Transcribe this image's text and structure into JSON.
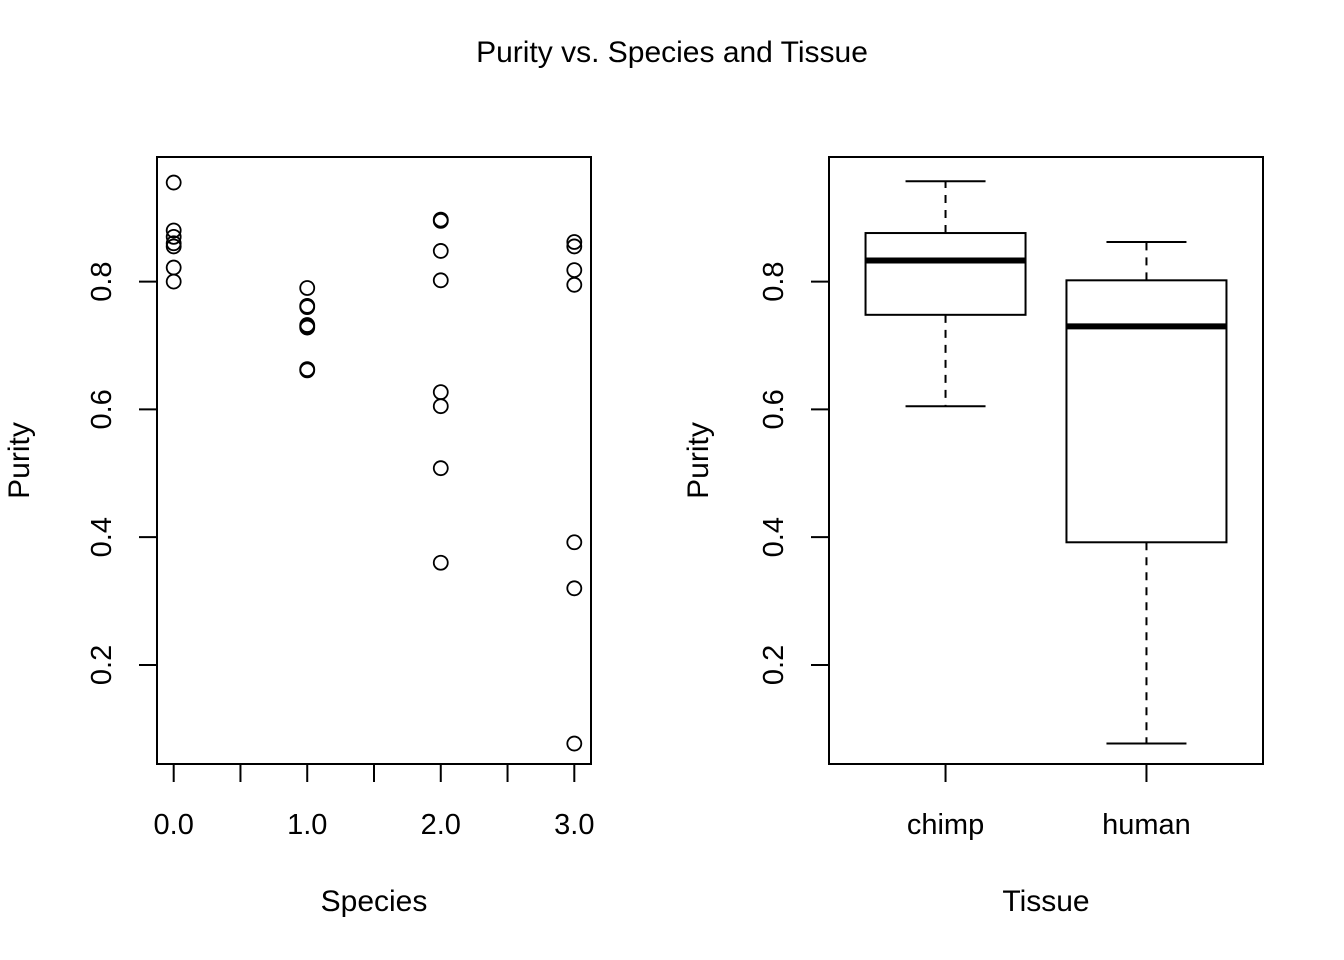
{
  "figure": {
    "title": "Purity vs. Species and Tissue"
  },
  "chart_data": [
    {
      "type": "scatter",
      "xlabel": "Species",
      "ylabel": "Purity",
      "xlim": [
        -0.125,
        3.125
      ],
      "ylim": [
        0.045,
        0.995
      ],
      "x_ticks": [
        0,
        0.5,
        1,
        1.5,
        2,
        2.5,
        3
      ],
      "x_tick_labels": [
        {
          "value": 0,
          "label": "0.0"
        },
        {
          "value": 1,
          "label": "1.0"
        },
        {
          "value": 2,
          "label": "2.0"
        },
        {
          "value": 3,
          "label": "3.0"
        }
      ],
      "y_ticks": [
        {
          "value": 0.2,
          "label": "0.2"
        },
        {
          "value": 0.4,
          "label": "0.4"
        },
        {
          "value": 0.6,
          "label": "0.6"
        },
        {
          "value": 0.8,
          "label": "0.8"
        }
      ],
      "points": [
        {
          "x": 0,
          "y": 0.955
        },
        {
          "x": 0,
          "y": 0.88
        },
        {
          "x": 0,
          "y": 0.87
        },
        {
          "x": 0,
          "y": 0.86
        },
        {
          "x": 0,
          "y": 0.855
        },
        {
          "x": 0,
          "y": 0.822
        },
        {
          "x": 0,
          "y": 0.8
        },
        {
          "x": 1,
          "y": 0.79
        },
        {
          "x": 1,
          "y": 0.762
        },
        {
          "x": 1,
          "y": 0.76
        },
        {
          "x": 1,
          "y": 0.732
        },
        {
          "x": 1,
          "y": 0.73
        },
        {
          "x": 1,
          "y": 0.728
        },
        {
          "x": 1,
          "y": 0.663
        },
        {
          "x": 1,
          "y": 0.661
        },
        {
          "x": 2,
          "y": 0.897
        },
        {
          "x": 2,
          "y": 0.895
        },
        {
          "x": 2,
          "y": 0.848
        },
        {
          "x": 2,
          "y": 0.802
        },
        {
          "x": 2,
          "y": 0.627
        },
        {
          "x": 2,
          "y": 0.605
        },
        {
          "x": 2,
          "y": 0.508
        },
        {
          "x": 2,
          "y": 0.36
        },
        {
          "x": 3,
          "y": 0.862
        },
        {
          "x": 3,
          "y": 0.855
        },
        {
          "x": 3,
          "y": 0.818
        },
        {
          "x": 3,
          "y": 0.795
        },
        {
          "x": 3,
          "y": 0.392
        },
        {
          "x": 3,
          "y": 0.32
        },
        {
          "x": 3,
          "y": 0.077
        }
      ]
    },
    {
      "type": "box",
      "xlabel": "Tissue",
      "ylabel": "Purity",
      "ylim": [
        0.045,
        0.995
      ],
      "y_ticks": [
        {
          "value": 0.2,
          "label": "0.2"
        },
        {
          "value": 0.4,
          "label": "0.4"
        },
        {
          "value": 0.6,
          "label": "0.6"
        },
        {
          "value": 0.8,
          "label": "0.8"
        }
      ],
      "categories": [
        "chimp",
        "human"
      ],
      "boxes": [
        {
          "category": "chimp",
          "min": 0.605,
          "q1": 0.748,
          "median": 0.833,
          "q3": 0.876,
          "max": 0.957
        },
        {
          "category": "human",
          "min": 0.077,
          "q1": 0.392,
          "median": 0.73,
          "q3": 0.802,
          "max": 0.862
        }
      ]
    }
  ]
}
